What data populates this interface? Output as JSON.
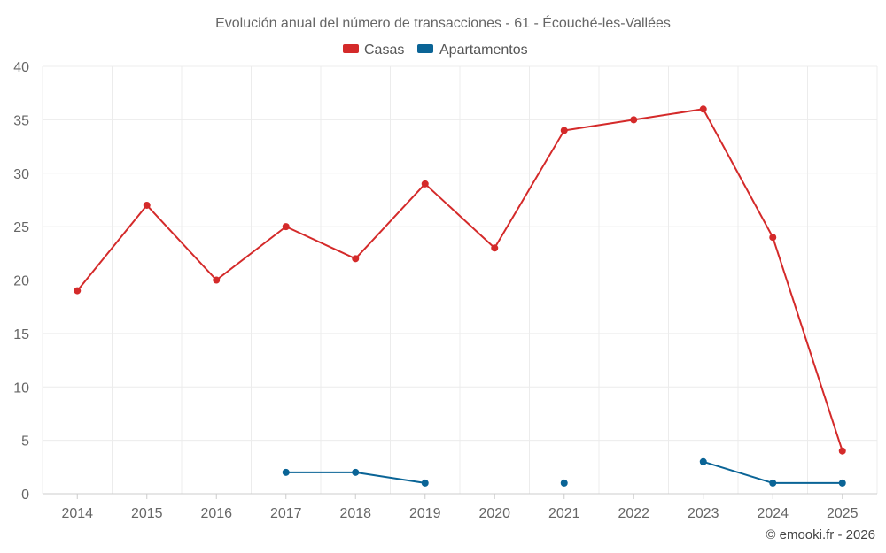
{
  "chart_data": {
    "type": "line",
    "title": "Evolución anual del número de transacciones - 61 - Écouché-les-Vallées",
    "categories": [
      "2014",
      "2015",
      "2016",
      "2017",
      "2018",
      "2019",
      "2020",
      "2021",
      "2022",
      "2023",
      "2024",
      "2025"
    ],
    "series": [
      {
        "name": "Casas",
        "color": "#d42a2a",
        "values": [
          19,
          27,
          20,
          25,
          22,
          29,
          23,
          34,
          35,
          36,
          24,
          4
        ]
      },
      {
        "name": "Apartamentos",
        "color": "#0a6496",
        "values": [
          null,
          null,
          null,
          2,
          2,
          1,
          null,
          1,
          null,
          3,
          1,
          1
        ]
      }
    ],
    "ylim": [
      0,
      40
    ],
    "yticks": [
      0,
      5,
      10,
      15,
      20,
      25,
      30,
      35,
      40
    ],
    "xlabel": "",
    "ylabel": "",
    "grid": true,
    "legend": "top-center"
  },
  "credit": "© emooki.fr - 2026"
}
